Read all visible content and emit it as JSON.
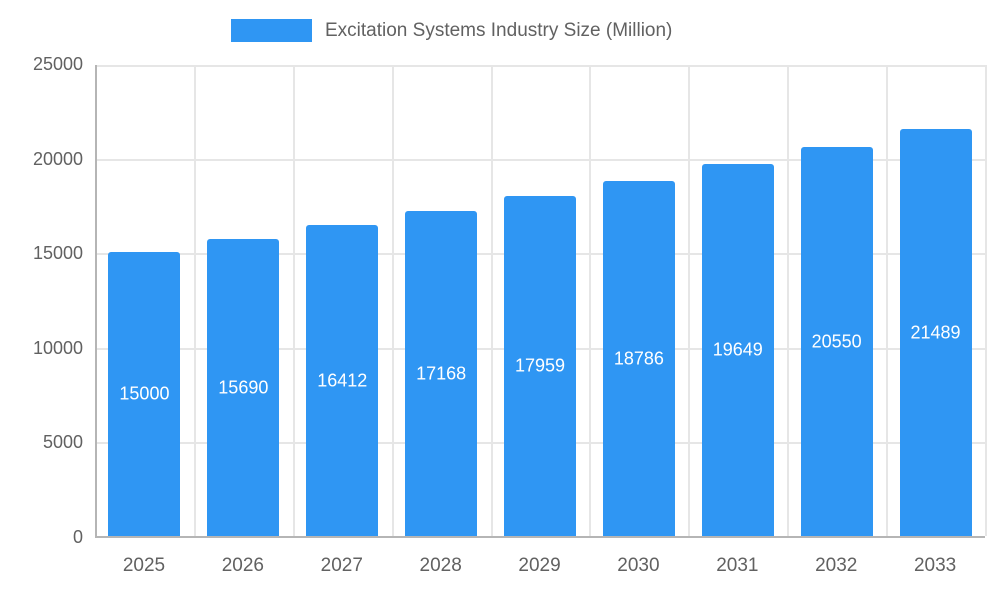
{
  "chart_data": {
    "type": "bar",
    "title": "Excitation Systems Industry Size (Million)",
    "legend": [
      "Excitation Systems Industry Size (Million)"
    ],
    "legend_position": "top",
    "categories": [
      "2025",
      "2026",
      "2027",
      "2028",
      "2029",
      "2030",
      "2031",
      "2032",
      "2033"
    ],
    "values": [
      15000,
      15690,
      16412,
      17168,
      17959,
      18786,
      19649,
      20550,
      21489
    ],
    "xlabel": "",
    "ylabel": "",
    "ylim": [
      0,
      25000
    ],
    "yticks": [
      0,
      5000,
      10000,
      15000,
      20000,
      25000
    ],
    "grid": true,
    "bar_color": "#2F96F3",
    "value_label_color": "#ffffff",
    "axis_label_color": "#616161"
  }
}
